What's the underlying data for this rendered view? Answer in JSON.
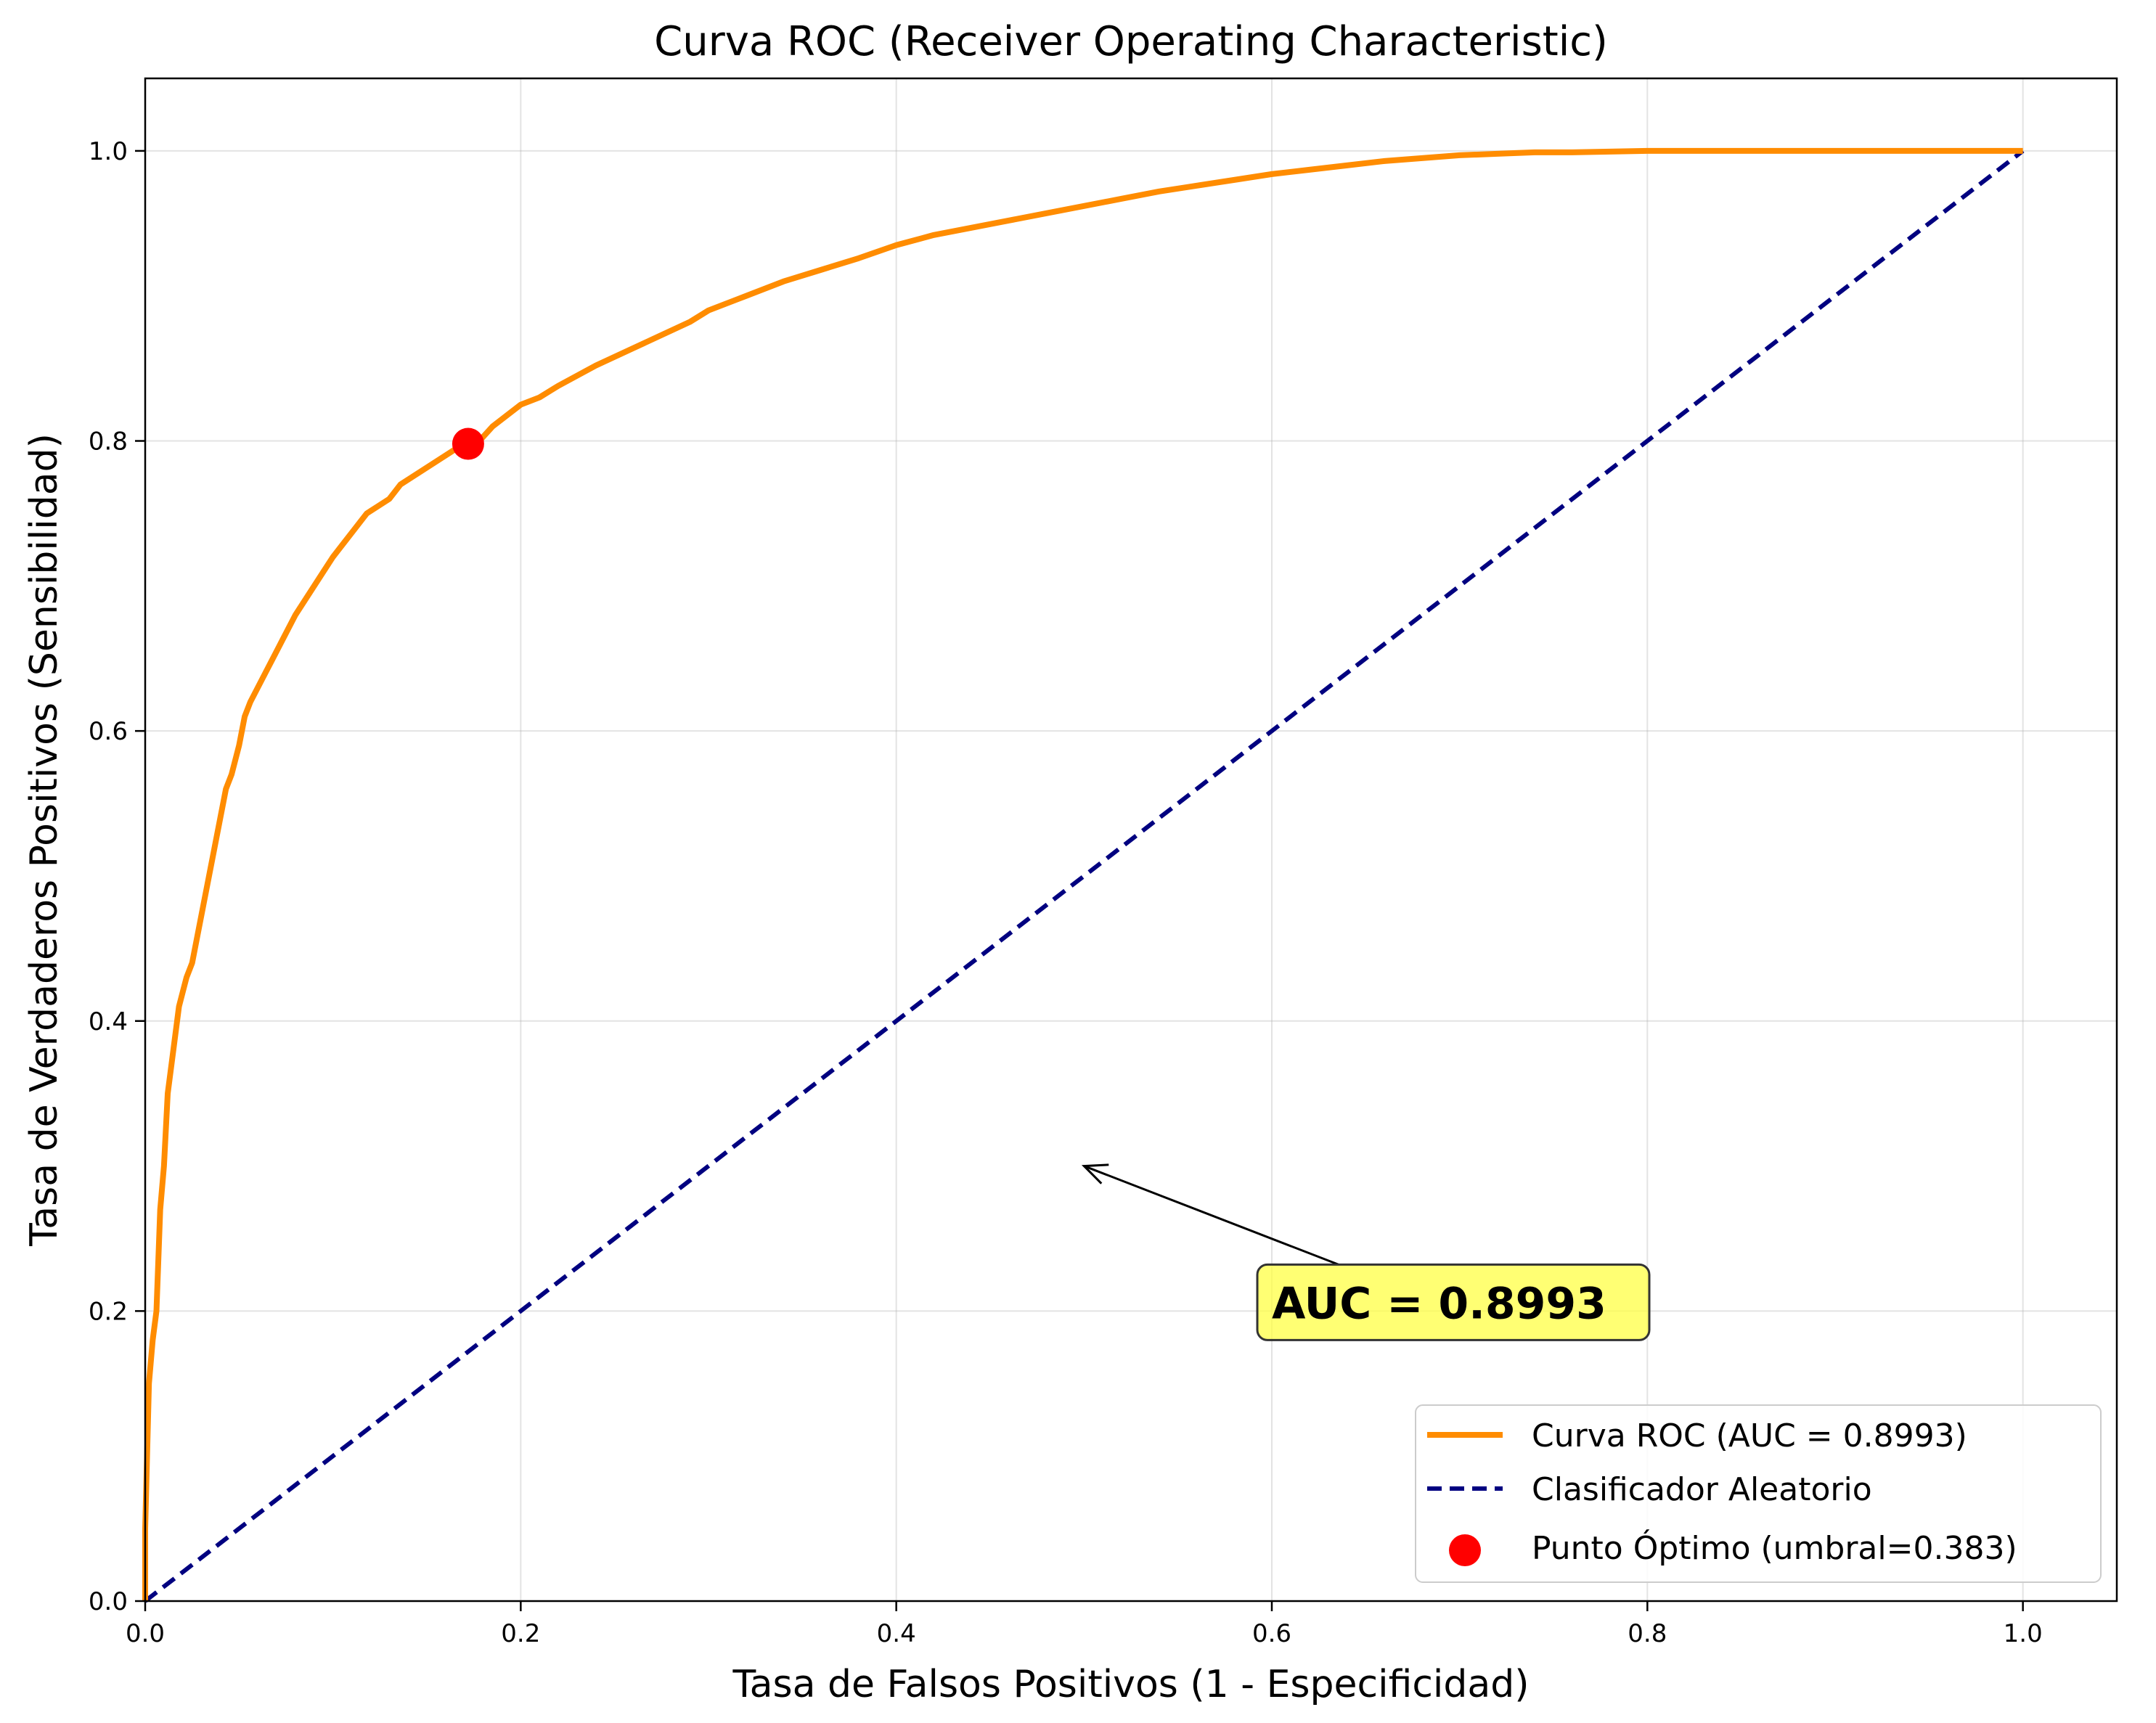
{
  "chart_data": {
    "type": "line",
    "title": "Curva ROC (Receiver Operating Characteristic)",
    "xlabel": "Tasa de Falsos Positivos (1 - Especificidad)",
    "ylabel": "Tasa de Verdaderos Positivos (Sensibilidad)",
    "xlim": [
      0.0,
      1.05
    ],
    "ylim": [
      0.0,
      1.05
    ],
    "x_ticks": [
      0.0,
      0.2,
      0.4,
      0.6,
      0.8,
      1.0
    ],
    "y_ticks": [
      0.0,
      0.2,
      0.4,
      0.6,
      0.8,
      1.0
    ],
    "x_tick_labels": [
      "0.0",
      "0.2",
      "0.4",
      "0.6",
      "0.8",
      "1.0"
    ],
    "y_tick_labels": [
      "0.0",
      "0.2",
      "0.4",
      "0.6",
      "0.8",
      "1.0"
    ],
    "grid": true,
    "legend_position": "lower-right",
    "series": [
      {
        "name": "Curva ROC (AUC = 0.8993)",
        "style": "solid",
        "color": "#ff8c00",
        "x": [
          0.0,
          0.0,
          0.002,
          0.004,
          0.006,
          0.008,
          0.01,
          0.012,
          0.014,
          0.016,
          0.018,
          0.02,
          0.022,
          0.025,
          0.028,
          0.031,
          0.034,
          0.037,
          0.04,
          0.043,
          0.046,
          0.05,
          0.053,
          0.056,
          0.06,
          0.064,
          0.068,
          0.072,
          0.076,
          0.08,
          0.085,
          0.09,
          0.095,
          0.1,
          0.106,
          0.112,
          0.118,
          0.124,
          0.13,
          0.136,
          0.142,
          0.148,
          0.154,
          0.16,
          0.166,
          0.172,
          0.178,
          0.185,
          0.19,
          0.2,
          0.21,
          0.22,
          0.23,
          0.24,
          0.25,
          0.26,
          0.27,
          0.28,
          0.29,
          0.3,
          0.32,
          0.34,
          0.36,
          0.38,
          0.4,
          0.42,
          0.44,
          0.46,
          0.48,
          0.5,
          0.52,
          0.54,
          0.56,
          0.58,
          0.6,
          0.62,
          0.64,
          0.66,
          0.68,
          0.7,
          0.72,
          0.74,
          0.76,
          0.8,
          0.85,
          0.9,
          0.95,
          1.0
        ],
        "y": [
          0.0,
          0.05,
          0.15,
          0.18,
          0.2,
          0.27,
          0.3,
          0.35,
          0.37,
          0.39,
          0.41,
          0.42,
          0.43,
          0.44,
          0.46,
          0.48,
          0.5,
          0.52,
          0.54,
          0.56,
          0.57,
          0.59,
          0.61,
          0.62,
          0.63,
          0.64,
          0.65,
          0.66,
          0.67,
          0.68,
          0.69,
          0.7,
          0.71,
          0.72,
          0.73,
          0.74,
          0.75,
          0.755,
          0.76,
          0.77,
          0.775,
          0.78,
          0.785,
          0.79,
          0.795,
          0.8,
          0.8,
          0.81,
          0.815,
          0.825,
          0.83,
          0.838,
          0.845,
          0.852,
          0.858,
          0.864,
          0.87,
          0.876,
          0.882,
          0.89,
          0.9,
          0.91,
          0.918,
          0.926,
          0.935,
          0.942,
          0.947,
          0.952,
          0.957,
          0.962,
          0.967,
          0.972,
          0.976,
          0.98,
          0.984,
          0.987,
          0.99,
          0.993,
          0.995,
          0.997,
          0.998,
          0.999,
          0.999,
          1.0,
          1.0,
          1.0,
          1.0,
          1.0
        ]
      },
      {
        "name": "Clasificador Aleatorio",
        "style": "dashed",
        "color": "#000080",
        "x": [
          0.0,
          1.0
        ],
        "y": [
          0.0,
          1.0
        ]
      }
    ],
    "points": [
      {
        "name": "Punto Óptimo (umbral=0.383)",
        "color": "#ff0000",
        "x": 0.172,
        "y": 0.798
      }
    ],
    "annotation": {
      "text": "AUC = 0.8993",
      "text_x": 0.6,
      "text_y": 0.2,
      "arrow_x": 0.5,
      "arrow_y": 0.3,
      "box_color": "#ffff44"
    }
  }
}
